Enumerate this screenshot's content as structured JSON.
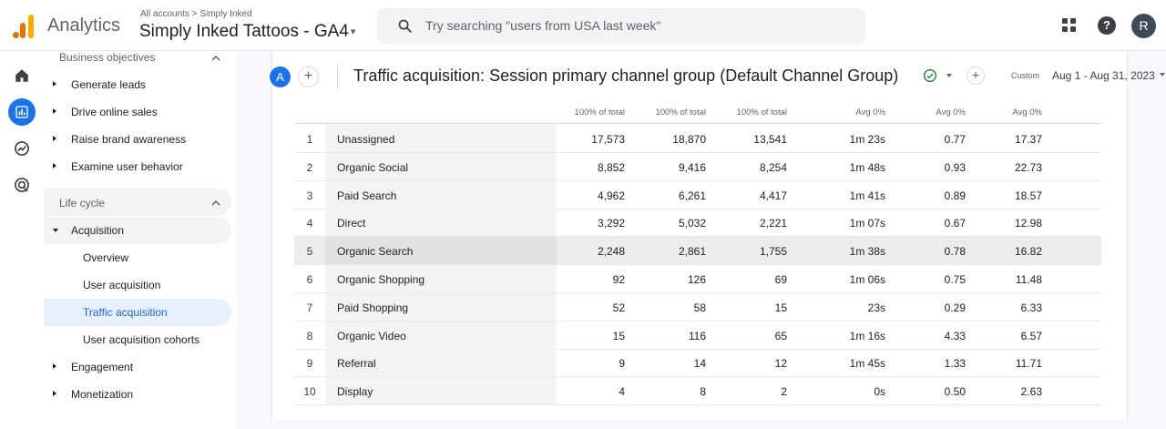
{
  "header": {
    "app_name": "Analytics",
    "breadcrumb": "All accounts > Simply Inked",
    "property_name": "Simply Inked Tattoos - GA4",
    "search_placeholder": "Try searching \"users from USA last week\"",
    "avatar_letter": "R",
    "help_label": "?"
  },
  "sidebar": {
    "sections": [
      {
        "label": "Business objectives"
      },
      {
        "label": "Life cycle"
      }
    ],
    "objectives": [
      {
        "label": "Generate leads"
      },
      {
        "label": "Drive online sales"
      },
      {
        "label": "Raise brand awareness"
      },
      {
        "label": "Examine user behavior"
      }
    ],
    "lifecycle": [
      {
        "label": "Acquisition"
      },
      {
        "label": "Overview"
      },
      {
        "label": "User acquisition"
      },
      {
        "label": "Traffic acquisition"
      },
      {
        "label": "User acquisition cohorts"
      },
      {
        "label": "Engagement"
      },
      {
        "label": "Monetization"
      }
    ]
  },
  "report": {
    "comparison_letter": "A",
    "plus": "+",
    "title": "Traffic acquisition: Session primary channel group (Default Channel Group)",
    "date_badge": "Custom",
    "date_range": "Aug 1 - Aug 31, 2023"
  },
  "table": {
    "headers": [
      "100% of total",
      "100% of total",
      "100% of total",
      "Avg 0%",
      "Avg 0%",
      "Avg 0%"
    ],
    "rows": [
      {
        "rank": "1",
        "channel": "Unassigned",
        "c1": "17,573",
        "c2": "18,870",
        "c3": "13,541",
        "c4": "1m 23s",
        "c5": "0.77",
        "c6": "17.37"
      },
      {
        "rank": "2",
        "channel": "Organic Social",
        "c1": "8,852",
        "c2": "9,416",
        "c3": "8,254",
        "c4": "1m 48s",
        "c5": "0.93",
        "c6": "22.73"
      },
      {
        "rank": "3",
        "channel": "Paid Search",
        "c1": "4,962",
        "c2": "6,261",
        "c3": "4,417",
        "c4": "1m 41s",
        "c5": "0.89",
        "c6": "18.57"
      },
      {
        "rank": "4",
        "channel": "Direct",
        "c1": "3,292",
        "c2": "5,032",
        "c3": "2,221",
        "c4": "1m 07s",
        "c5": "0.67",
        "c6": "12.98"
      },
      {
        "rank": "5",
        "channel": "Organic Search",
        "c1": "2,248",
        "c2": "2,861",
        "c3": "1,755",
        "c4": "1m 38s",
        "c5": "0.78",
        "c6": "16.82"
      },
      {
        "rank": "6",
        "channel": "Organic Shopping",
        "c1": "92",
        "c2": "126",
        "c3": "69",
        "c4": "1m 06s",
        "c5": "0.75",
        "c6": "11.48"
      },
      {
        "rank": "7",
        "channel": "Paid Shopping",
        "c1": "52",
        "c2": "58",
        "c3": "15",
        "c4": "23s",
        "c5": "0.29",
        "c6": "6.33"
      },
      {
        "rank": "8",
        "channel": "Organic Video",
        "c1": "15",
        "c2": "116",
        "c3": "65",
        "c4": "1m 16s",
        "c5": "4.33",
        "c6": "6.57"
      },
      {
        "rank": "9",
        "channel": "Referral",
        "c1": "9",
        "c2": "14",
        "c3": "12",
        "c4": "1m 45s",
        "c5": "1.33",
        "c6": "11.71"
      },
      {
        "rank": "10",
        "channel": "Display",
        "c1": "4",
        "c2": "8",
        "c3": "2",
        "c4": "0s",
        "c5": "0.50",
        "c6": "2.63"
      }
    ]
  },
  "colors": {
    "accent": "#1a73e8",
    "active_nav_bg": "#e8f0fe",
    "active_nav_text": "#1967d2",
    "logo_orange": "#f9ab00",
    "check_green": "#188038"
  },
  "icons": {
    "rail": [
      "home-icon",
      "reports-icon",
      "explore-icon",
      "advertising-icon"
    ],
    "top": [
      "search-icon",
      "apps-grid-icon",
      "help-icon"
    ]
  }
}
